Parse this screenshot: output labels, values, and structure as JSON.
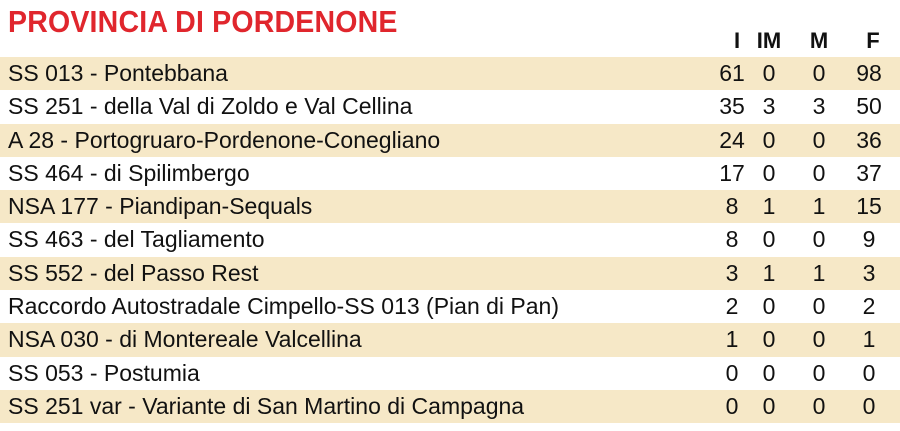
{
  "title": "PROVINCIA DI PORDENONE",
  "columns": [
    "I",
    "IM",
    "M",
    "F"
  ],
  "rows": [
    {
      "name": "SS 013 - Pontebbana",
      "i": "61",
      "im": "0",
      "m": "0",
      "f": "98"
    },
    {
      "name": "SS 251 - della Val di Zoldo e Val Cellina",
      "i": "35",
      "im": "3",
      "m": "3",
      "f": "50"
    },
    {
      "name": "A 28 - Portogruaro-Pordenone-Conegliano",
      "i": "24",
      "im": "0",
      "m": "0",
      "f": "36"
    },
    {
      "name": "SS 464 - di Spilimbergo",
      "i": "17",
      "im": "0",
      "m": "0",
      "f": "37"
    },
    {
      "name": "NSA 177 - Piandipan-Sequals",
      "i": "8",
      "im": "1",
      "m": "1",
      "f": "15"
    },
    {
      "name": "SS 463 - del Tagliamento",
      "i": "8",
      "im": "0",
      "m": "0",
      "f": "9"
    },
    {
      "name": "SS 552 - del Passo Rest",
      "i": "3",
      "im": "1",
      "m": "1",
      "f": "3"
    },
    {
      "name": "Raccordo Autostradale Cimpello-SS 013 (Pian di Pan)",
      "i": "2",
      "im": "0",
      "m": "0",
      "f": "2"
    },
    {
      "name": "NSA 030 - di Montereale Valcellina",
      "i": "1",
      "im": "0",
      "m": "0",
      "f": "1"
    },
    {
      "name": "SS 053 - Postumia",
      "i": "0",
      "im": "0",
      "m": "0",
      "f": "0"
    },
    {
      "name": "SS 251 var - Variante di San Martino di Campagna",
      "i": "0",
      "im": "0",
      "m": "0",
      "f": "0"
    }
  ],
  "colors": {
    "title": "#e0262d",
    "shaded_row": "#f6e8c7",
    "text": "#111111"
  }
}
